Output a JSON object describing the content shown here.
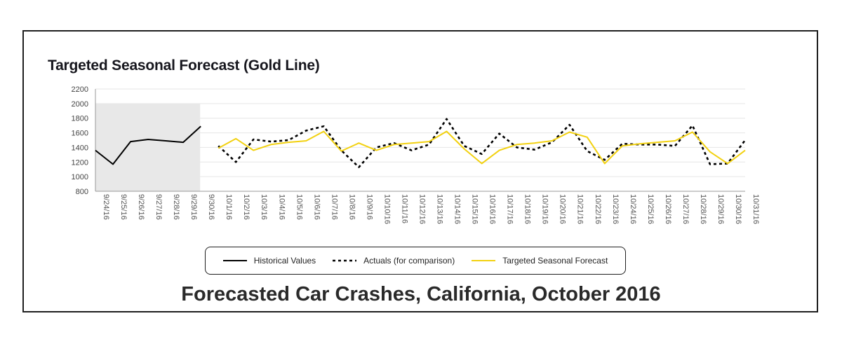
{
  "chart_data": {
    "type": "line",
    "title": "Targeted Seasonal Forecast (Gold Line)",
    "caption": "Forecasted Car Crashes, California, October 2016",
    "ylim": [
      800,
      2200
    ],
    "yticks": [
      800,
      1000,
      1200,
      1400,
      1600,
      1800,
      2000,
      2200
    ],
    "categories": [
      "9/24/16",
      "9/25/16",
      "9/26/16",
      "9/27/16",
      "9/28/16",
      "9/29/16",
      "9/30/16",
      "10/1/16",
      "10/2/16",
      "10/3/16",
      "10/4/16",
      "10/5/16",
      "10/6/16",
      "10/7/16",
      "10/8/16",
      "10/9/16",
      "10/10/16",
      "10/11/16",
      "10/12/16",
      "10/13/16",
      "10/14/16",
      "10/15/16",
      "10/16/16",
      "10/17/16",
      "10/18/16",
      "10/19/16",
      "10/20/16",
      "10/21/16",
      "10/22/16",
      "10/23/16",
      "10/24/16",
      "10/25/16",
      "10/26/16",
      "10/27/16",
      "10/28/16",
      "10/29/16",
      "10/30/16",
      "10/31/16"
    ],
    "shaded_range": [
      "9/24/16",
      "10/1/16"
    ],
    "series": [
      {
        "name": "Historical Values",
        "style": "solid",
        "color": "#000000",
        "values": [
          1360,
          1170,
          1480,
          1510,
          1490,
          1470,
          1690,
          null,
          null,
          null,
          null,
          null,
          null,
          null,
          null,
          null,
          null,
          null,
          null,
          null,
          null,
          null,
          null,
          null,
          null,
          null,
          null,
          null,
          null,
          null,
          null,
          null,
          null,
          null,
          null,
          null,
          null,
          null
        ]
      },
      {
        "name": "Actuals (for comparison)",
        "style": "dotted",
        "color": "#000000",
        "values": [
          null,
          null,
          null,
          null,
          null,
          null,
          null,
          1420,
          1200,
          1510,
          1480,
          1500,
          1630,
          1690,
          1360,
          1130,
          1400,
          1460,
          1360,
          1440,
          1790,
          1420,
          1310,
          1590,
          1400,
          1370,
          1470,
          1710,
          1350,
          1230,
          1450,
          1440,
          1440,
          1420,
          1700,
          1170,
          1180,
          1500
        ]
      },
      {
        "name": "Targeted Seasonal Forecast",
        "style": "solid",
        "color": "#f2d110",
        "values": [
          null,
          null,
          null,
          null,
          null,
          null,
          null,
          1390,
          1520,
          1360,
          1440,
          1470,
          1490,
          1620,
          1350,
          1460,
          1360,
          1440,
          1460,
          1480,
          1620,
          1380,
          1180,
          1360,
          1440,
          1460,
          1490,
          1610,
          1540,
          1180,
          1420,
          1450,
          1470,
          1490,
          1610,
          1340,
          1180,
          1360
        ]
      }
    ],
    "grid": true,
    "legend": "bottom-center"
  }
}
